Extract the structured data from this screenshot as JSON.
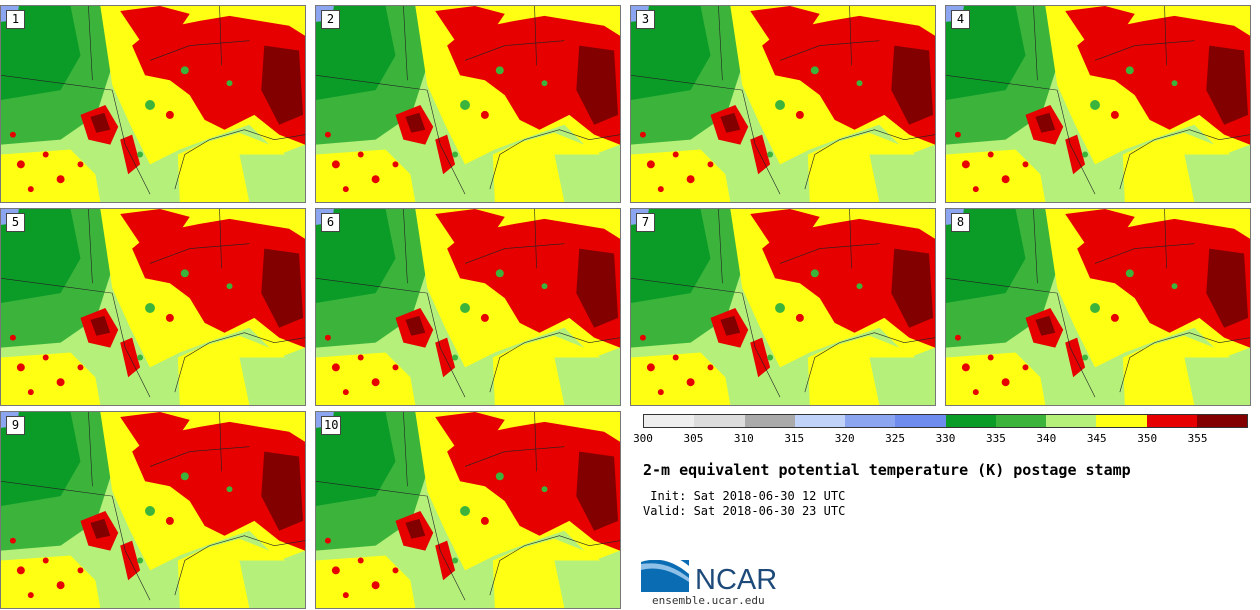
{
  "panels": [
    {
      "label": "1"
    },
    {
      "label": "2"
    },
    {
      "label": "3"
    },
    {
      "label": "4"
    },
    {
      "label": "5"
    },
    {
      "label": "6"
    },
    {
      "label": "7"
    },
    {
      "label": "8"
    },
    {
      "label": "9"
    },
    {
      "label": "10"
    }
  ],
  "colorbar": {
    "colors": [
      "#eeeeee",
      "#dcdcdc",
      "#aaaaaa",
      "#c0d2f8",
      "#8ca5f0",
      "#6e8bee",
      "#0b9c28",
      "#3cb43c",
      "#b4f07a",
      "#ffff14",
      "#e60000",
      "#820000"
    ],
    "ticks": [
      "300",
      "305",
      "310",
      "315",
      "320",
      "325",
      "330",
      "335",
      "340",
      "345",
      "350",
      "355"
    ]
  },
  "title": "2-m equivalent potential temperature (K) postage stamp",
  "init": " Init: Sat 2018-06-30 12 UTC",
  "valid": "Valid: Sat 2018-06-30 23 UTC",
  "logo_text": "NCAR",
  "footer": "ensemble.ucar.edu"
}
